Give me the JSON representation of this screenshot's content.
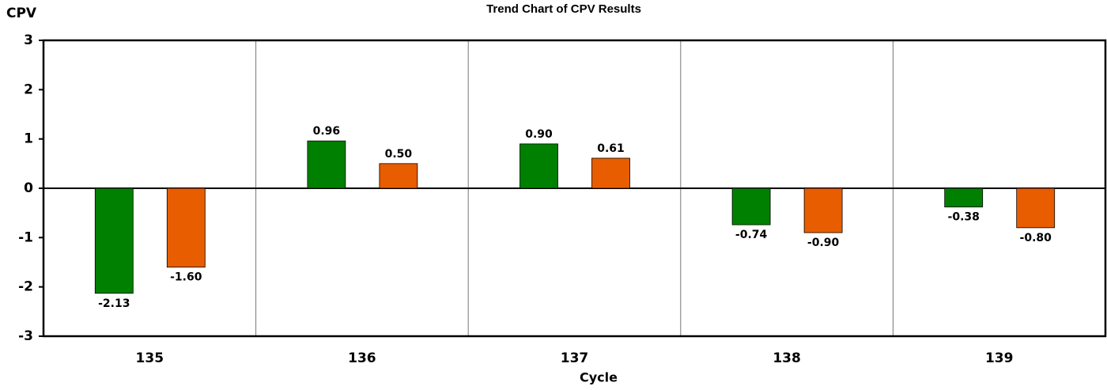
{
  "chart_data": {
    "type": "bar",
    "title": "Trend Chart of CPV Results",
    "ylabel": "CPV",
    "xlabel": "Cycle",
    "categories": [
      "135",
      "136",
      "137",
      "138",
      "139"
    ],
    "series": [
      {
        "color": "#008000",
        "values": [
          -2.13,
          0.96,
          0.9,
          -0.74,
          -0.38
        ],
        "value_labels": [
          "-2.13",
          "0.96",
          "0.90",
          "-0.74",
          "-0.38"
        ]
      },
      {
        "color": "#e85d00",
        "values": [
          -1.6,
          0.5,
          0.61,
          -0.9,
          -0.8
        ],
        "value_labels": [
          "-1.60",
          "0.50",
          "0.61",
          "-0.90",
          "-0.80"
        ]
      }
    ],
    "ylim": [
      -3,
      3
    ],
    "yticks": [
      -3,
      -2,
      -1,
      0,
      1,
      2,
      3
    ]
  }
}
